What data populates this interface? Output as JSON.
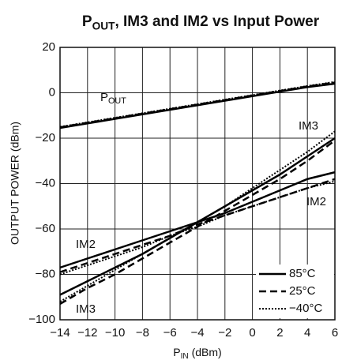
{
  "chart_data": {
    "type": "line",
    "title": [
      "P",
      "OUT",
      ", IM3 and IM2 vs Input Power"
    ],
    "xlabel": [
      "P",
      "IN",
      " (dBm)"
    ],
    "ylabel": "OUTPUT POWER (dBm)",
    "x": [
      -14,
      -12,
      -10,
      -8,
      -6,
      -4,
      -2,
      0,
      2,
      4,
      6
    ],
    "xlim": [
      -14,
      6
    ],
    "xticks": [
      {
        "value": -14,
        "label": "−14"
      },
      {
        "value": -12,
        "label": "−12"
      },
      {
        "value": -10,
        "label": "−10"
      },
      {
        "value": -8,
        "label": "−8"
      },
      {
        "value": -6,
        "label": "−6"
      },
      {
        "value": -4,
        "label": "−4"
      },
      {
        "value": -2,
        "label": "−2"
      },
      0,
      2,
      4,
      6
    ],
    "ylim": [
      -100,
      20
    ],
    "yticks": [
      {
        "value": -100,
        "label": "−100"
      },
      {
        "value": -80,
        "label": "−80"
      },
      {
        "value": -60,
        "label": "−60"
      },
      {
        "value": -40,
        "label": "−40"
      },
      {
        "value": -20,
        "label": "−20"
      },
      0,
      20
    ],
    "grid": true,
    "legend": "lower right",
    "annotations": [
      [
        "P",
        "OUT"
      ],
      [
        "IM3"
      ],
      [
        "IM2"
      ],
      [
        "IM2"
      ],
      [
        "IM3"
      ]
    ],
    "series": [
      {
        "name": "85°C",
        "color": "#000000",
        "dash": "solid",
        "lines": [
          {
            "values": [
              -15.5,
              -13.5,
              -11.5,
              -9.5,
              -7.5,
              -5.5,
              -3.5,
              -1.5,
              0.5,
              2.5,
              4.0
            ]
          },
          {
            "values": [
              -89,
              -83,
              -77,
              -71,
              -64,
              -57,
              -50,
              -43,
              -36,
              -28,
              -20
            ]
          },
          {
            "values": [
              -77,
              -73,
              -69,
              -65,
              -61,
              -57,
              -53,
              -48,
              -43,
              -38,
              -35
            ]
          }
        ]
      },
      {
        "name": "25°C",
        "color": "#000000",
        "dash": "dashed",
        "lines": [
          {
            "values": [
              -15.2,
              -13.2,
              -11.2,
              -9.2,
              -7.2,
              -5.2,
              -3.2,
              -1.2,
              0.8,
              2.8,
              4.5
            ]
          },
          {
            "values": [
              -93,
              -86,
              -80,
              -73,
              -66,
              -59,
              -52,
              -45,
              -38,
              -30,
              -21
            ]
          },
          {
            "values": [
              -79,
              -75,
              -71,
              -67,
              -63,
              -58,
              -54,
              -50,
              -46,
              -42,
              -38
            ]
          }
        ]
      },
      {
        "name": "−40°C",
        "color": "#000000",
        "dash": "dotted",
        "lines": [
          {
            "values": [
              -15.0,
              -13.0,
              -11.0,
              -9.0,
              -7.0,
              -5.0,
              -3.0,
              -1.0,
              1.0,
              3.0,
              4.8
            ]
          },
          {
            "values": [
              -92,
              -85,
              -78,
              -71,
              -64,
              -57,
              -50,
              -42,
              -34,
              -26,
              -17
            ]
          },
          {
            "values": [
              -80,
              -76,
              -72,
              -68,
              -63,
              -59,
              -54,
              -50,
              -46,
              -42,
              -39
            ]
          }
        ]
      }
    ]
  }
}
